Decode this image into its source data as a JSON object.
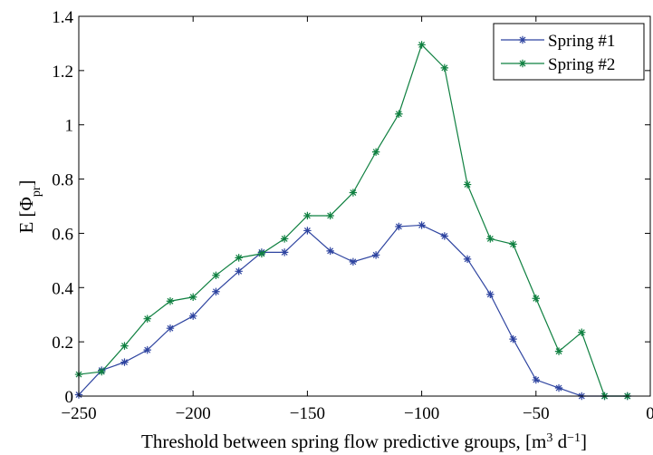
{
  "chart_data": {
    "type": "line",
    "title": "",
    "xlabel_main": "Threshold between spring flow predictive groups, [m",
    "xlabel_sup1": "3",
    "xlabel_mid": " d",
    "xlabel_sup2": "−1",
    "xlabel_end": "]",
    "ylabel_main": "E [",
    "ylabel_sym": "Φ",
    "ylabel_sub": "pr",
    "ylabel_end": "]",
    "xlim": [
      -250,
      0
    ],
    "ylim": [
      0,
      1.4
    ],
    "xticks": [
      -250,
      -200,
      -150,
      -100,
      -50,
      0
    ],
    "xtick_labels": [
      "−250",
      "−200",
      "−150",
      "−100",
      "−50",
      "0"
    ],
    "yticks": [
      0,
      0.2,
      0.4,
      0.6,
      0.8,
      1,
      1.2,
      1.4
    ],
    "ytick_labels": [
      "0",
      "0.2",
      "0.4",
      "0.6",
      "0.8",
      "1",
      "1.2",
      "1.4"
    ],
    "grid": false,
    "legend_position": "top-right",
    "x": [
      -250,
      -240,
      -230,
      -220,
      -210,
      -200,
      -190,
      -180,
      -170,
      -160,
      -150,
      -140,
      -130,
      -120,
      -110,
      -100,
      -90,
      -80,
      -70,
      -60,
      -50,
      -40,
      -30,
      -20,
      -10
    ],
    "series": [
      {
        "name": "Spring #1",
        "color": "#2e44a0",
        "marker": "asterisk",
        "values": [
          0.005,
          0.095,
          0.125,
          0.17,
          0.25,
          0.295,
          0.385,
          0.46,
          0.53,
          0.53,
          0.61,
          0.535,
          0.495,
          0.52,
          0.625,
          0.63,
          0.59,
          0.505,
          0.375,
          0.21,
          0.06,
          0.03,
          0.0,
          0.0,
          0.0
        ]
      },
      {
        "name": "Spring #2",
        "color": "#0f8040",
        "marker": "asterisk",
        "values": [
          0.08,
          0.09,
          0.185,
          0.285,
          0.35,
          0.365,
          0.445,
          0.51,
          0.525,
          0.58,
          0.665,
          0.665,
          0.75,
          0.9,
          1.04,
          1.295,
          1.21,
          0.78,
          0.58,
          0.56,
          0.36,
          0.165,
          0.235,
          0.0,
          0.0
        ]
      }
    ]
  }
}
